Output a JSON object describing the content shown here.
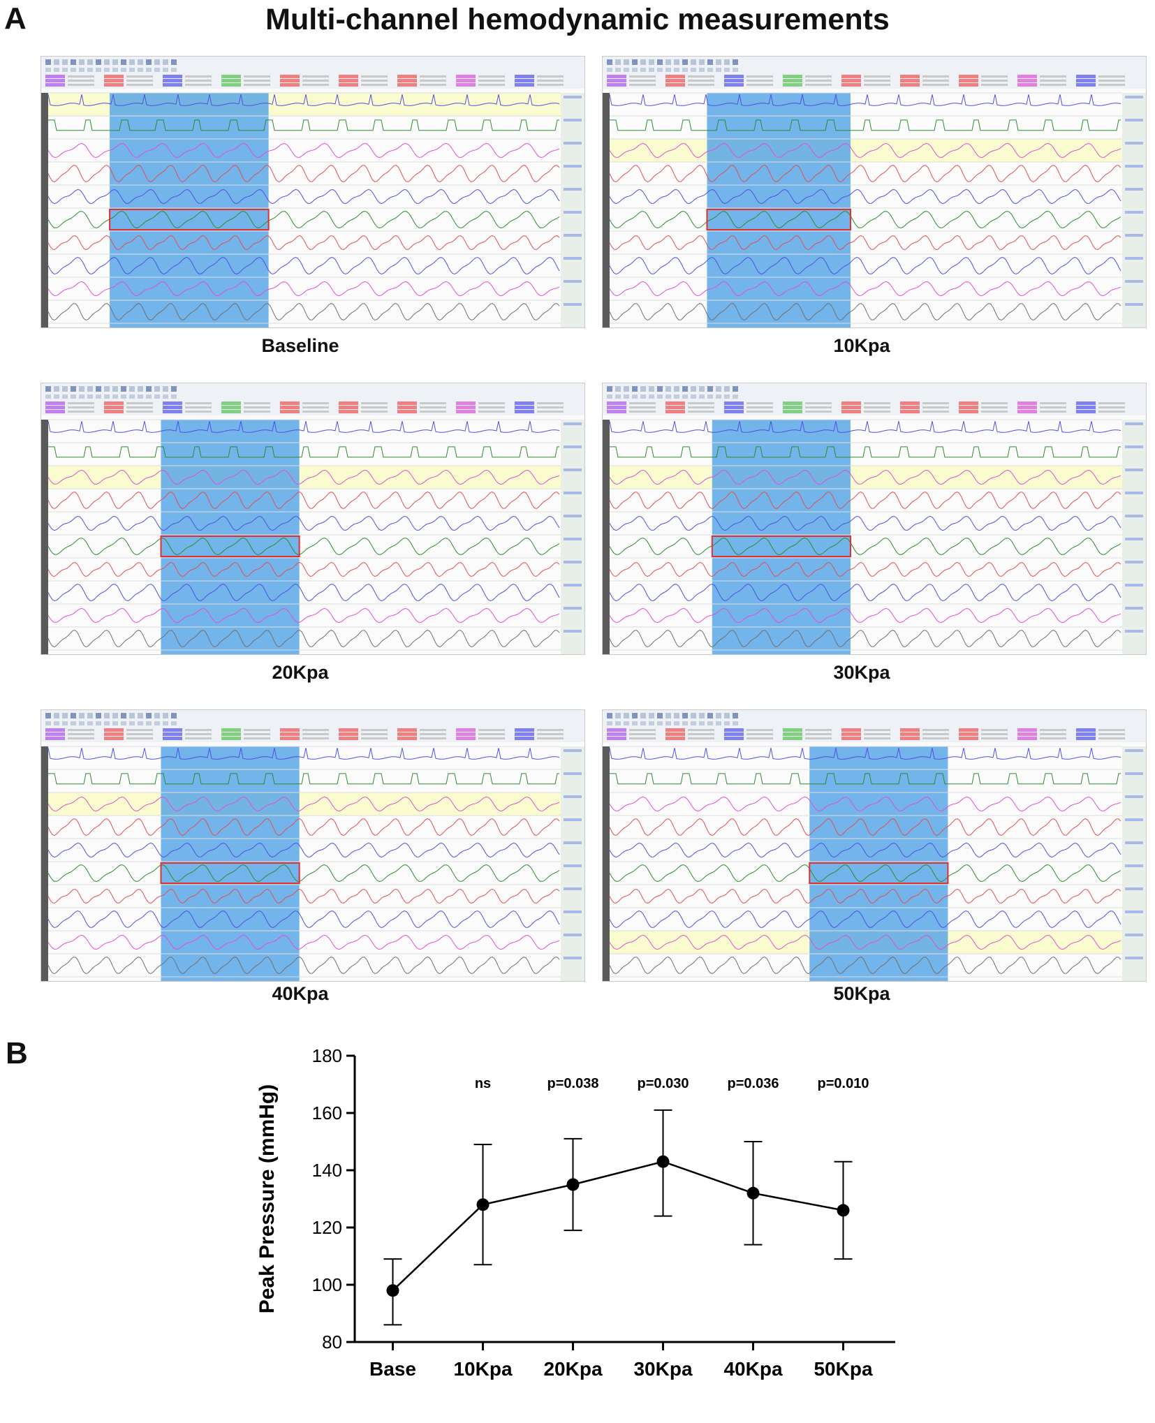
{
  "figure": {
    "panel_a_letter": "A",
    "panel_b_letter": "B",
    "panel_a_title": "Multi-channel hemodynamic measurements"
  },
  "screenshots": [
    {
      "label": "Baseline",
      "highlight_segment": [
        0.12,
        0.43
      ],
      "yellow_row": 0
    },
    {
      "label": "10Kpa",
      "highlight_segment": [
        0.19,
        0.47
      ],
      "yellow_row": 2
    },
    {
      "label": "20Kpa",
      "highlight_segment": [
        0.22,
        0.49
      ],
      "yellow_row": 2
    },
    {
      "label": "30Kpa",
      "highlight_segment": [
        0.2,
        0.47
      ],
      "yellow_row": 2
    },
    {
      "label": "40Kpa",
      "highlight_segment": [
        0.22,
        0.49
      ],
      "yellow_row": 2
    },
    {
      "label": "50Kpa",
      "highlight_segment": [
        0.39,
        0.66
      ],
      "yellow_row": 8
    }
  ],
  "colors": {
    "highlight": "#5aa7e6",
    "highlight_box": "#e03030",
    "yellow_row": "#fbfbd0",
    "trace_blue": "#5050e0",
    "trace_green": "#2e8b2e",
    "trace_red": "#e05050",
    "trace_magenta": "#e050d0",
    "trace_gray": "#707070",
    "chart_line": "#000000"
  },
  "chart_data": {
    "type": "line",
    "categories": [
      "Base",
      "10Kpa",
      "20Kpa",
      "30Kpa",
      "40Kpa",
      "50Kpa"
    ],
    "values": [
      98,
      128,
      135,
      143,
      132,
      126
    ],
    "error_upper": [
      109,
      149,
      151,
      161,
      150,
      143
    ],
    "error_lower": [
      86,
      107,
      119,
      124,
      114,
      109
    ],
    "ylabel": "Peak Pressure (mmHg)",
    "xlabel": "",
    "ylim": [
      80,
      180
    ],
    "yticks": [
      80,
      100,
      120,
      140,
      160,
      180
    ],
    "annotations": [
      "",
      "ns",
      "p=0.038",
      "p=0.030",
      "p=0.036",
      "p=0.010"
    ]
  }
}
